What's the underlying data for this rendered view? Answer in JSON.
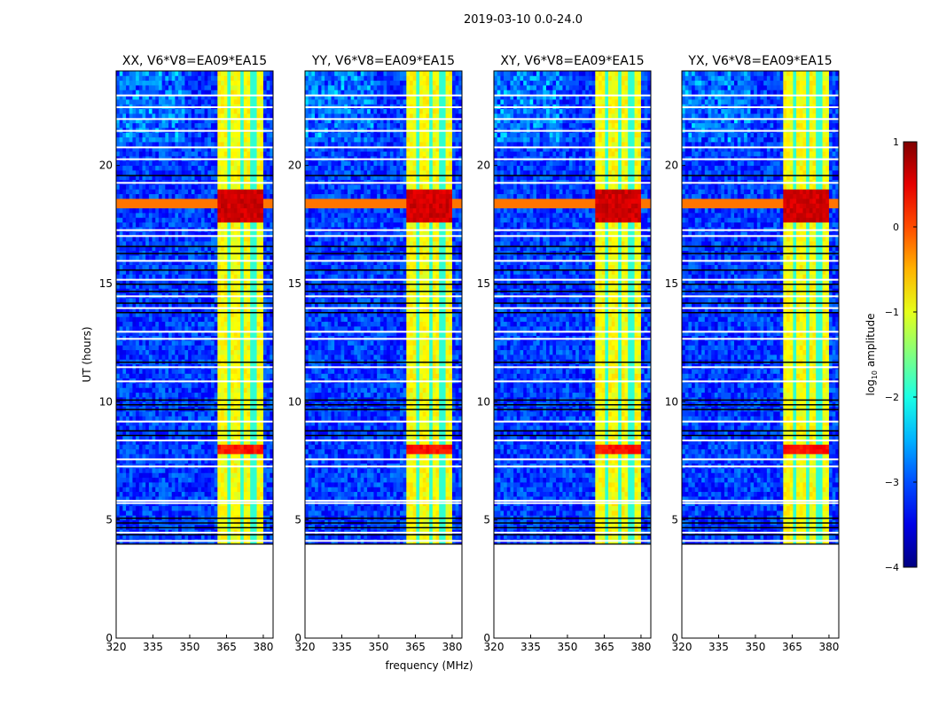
{
  "chart_data": {
    "type": "heatmap",
    "suptitle": "2019-03-10 0.0-24.0",
    "xlabel": "frequency (MHz)",
    "ylabel": "UT (hours)",
    "xlim": [
      320,
      384
    ],
    "ylim": [
      0,
      24
    ],
    "xticks": [
      "320",
      "335",
      "350",
      "365",
      "380"
    ],
    "xtick_values": [
      320,
      335,
      350,
      365,
      380
    ],
    "yticks": [
      "0",
      "5",
      "10",
      "15",
      "20"
    ],
    "ytick_values": [
      0,
      5,
      10,
      15,
      20
    ],
    "panels": [
      {
        "title": "XX, V6*V8=EA09*EA15"
      },
      {
        "title": "YY, V6*V8=EA09*EA15"
      },
      {
        "title": "XY, V6*V8=EA09*EA15"
      },
      {
        "title": "YX, V6*V8=EA09*EA15"
      }
    ],
    "data_start_hour": 4.0,
    "data_end_hour": 24.0,
    "background_log_amplitude": -3.1,
    "bright_band_mhz": [
      361,
      380
    ],
    "bright_band_log_amplitude": -0.9,
    "band_gaps_mhz": [
      365.5,
      371,
      376
    ],
    "high_amplitude_hours": [
      [
        17.5,
        18.8,
        0.6
      ],
      [
        7.7,
        8.1,
        0.3
      ]
    ],
    "flagged_white_hours": [
      4.15,
      4.5,
      5.75,
      5.85,
      7.3,
      7.6,
      8.4,
      9.2,
      10.9,
      11.5,
      12.7,
      13.0,
      14.0,
      14.5,
      15.2,
      16.0,
      17.05,
      17.3,
      19.3,
      20.3,
      20.8,
      21.5,
      22.0,
      22.5,
      23.0
    ],
    "flagged_black_hours": [
      4.4,
      4.7,
      4.9,
      5.1,
      8.6,
      8.8,
      9.7,
      9.9,
      10.1,
      11.7,
      13.8,
      14.2,
      14.7,
      15.0,
      15.6,
      16.3,
      16.6,
      19.6
    ],
    "colorbar": {
      "label": "log10 amplitude",
      "label_main": "log",
      "label_sub": "10",
      "label_rest": " amplitude",
      "ticks": [
        "1",
        "0",
        "−1",
        "−2",
        "−3",
        "−4"
      ],
      "tick_values": [
        1,
        0,
        -1,
        -2,
        -3,
        -4
      ],
      "range": [
        -4,
        1
      ],
      "colormap": "jet"
    }
  }
}
